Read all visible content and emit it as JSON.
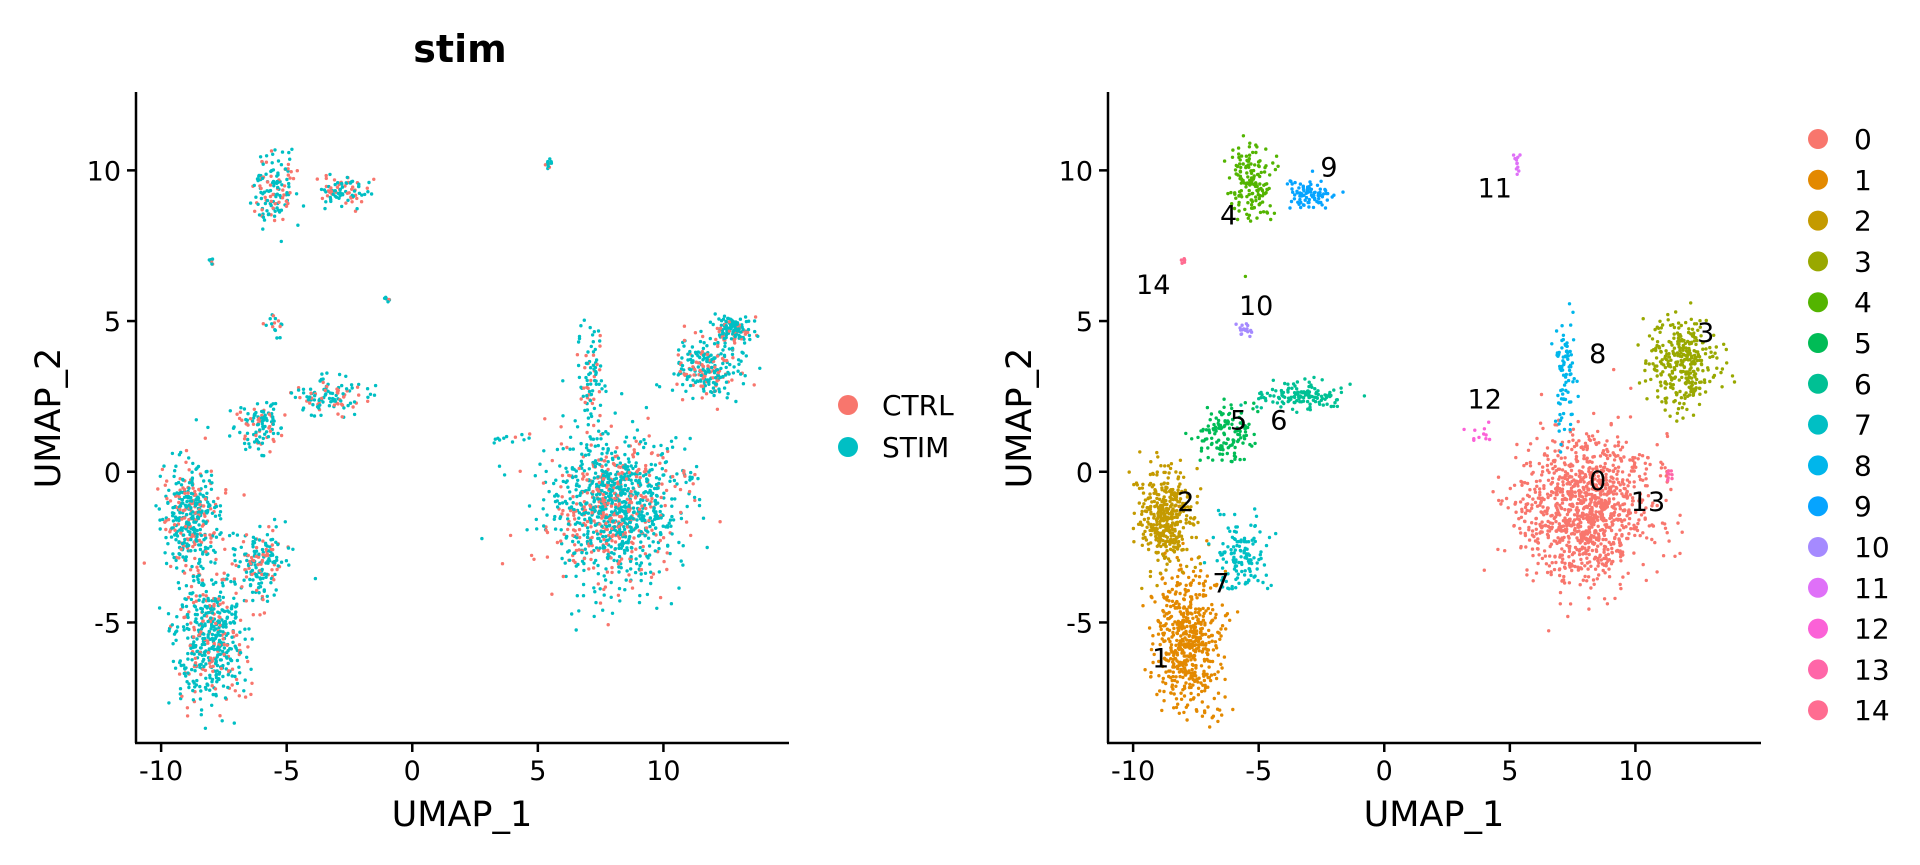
{
  "chart_data": [
    {
      "type": "scatter",
      "title": "stim",
      "xlabel": "UMAP_1",
      "ylabel": "UMAP_2",
      "xlim": [
        -11,
        15
      ],
      "ylim": [
        -9,
        12.6
      ],
      "x_ticks": [
        -10,
        -5,
        0,
        5,
        10
      ],
      "y_ticks": [
        -5,
        0,
        5,
        10
      ],
      "x_tick_labels": [
        "-10",
        "-5",
        "0",
        "5",
        "10"
      ],
      "y_tick_labels": [
        "-5",
        "0",
        "5",
        "10"
      ],
      "grid": false,
      "legend_position": "right",
      "series": [
        {
          "name": "CTRL",
          "color": "#F8766D"
        },
        {
          "name": "STIM",
          "color": "#00BFC4"
        }
      ],
      "regions": [
        {
          "cx": 8.0,
          "cy": -1.2,
          "rx": 2.6,
          "ry": 2.4,
          "weight": 1.0
        },
        {
          "cx": 11.8,
          "cy": 3.4,
          "rx": 1.3,
          "ry": 1.0,
          "weight": 0.22
        },
        {
          "cx": 12.8,
          "cy": 4.7,
          "rx": 0.7,
          "ry": 0.5,
          "weight": 0.12
        },
        {
          "cx": 7.1,
          "cy": 3.2,
          "rx": 0.5,
          "ry": 1.9,
          "weight": 0.08
        },
        {
          "cx": 5.4,
          "cy": 10.2,
          "rx": 0.15,
          "ry": 0.25,
          "weight": 0.01
        },
        {
          "cx": 4.0,
          "cy": 1.1,
          "rx": 0.7,
          "ry": 0.3,
          "weight": 0.01
        },
        {
          "cx": 11.0,
          "cy": -0.2,
          "rx": 0.4,
          "ry": 0.2,
          "weight": 0.01
        },
        {
          "cx": -8.8,
          "cy": -1.5,
          "rx": 1.1,
          "ry": 1.8,
          "weight": 0.35
        },
        {
          "cx": -8.0,
          "cy": -5.5,
          "rx": 1.4,
          "ry": 2.2,
          "weight": 0.45
        },
        {
          "cx": -6.0,
          "cy": -3.0,
          "rx": 1.0,
          "ry": 1.2,
          "weight": 0.15
        },
        {
          "cx": -6.2,
          "cy": 1.5,
          "rx": 1.0,
          "ry": 0.8,
          "weight": 0.1
        },
        {
          "cx": -3.2,
          "cy": 2.5,
          "rx": 1.6,
          "ry": 0.6,
          "weight": 0.1
        },
        {
          "cx": -5.5,
          "cy": 9.4,
          "rx": 0.8,
          "ry": 1.4,
          "weight": 0.12
        },
        {
          "cx": -2.8,
          "cy": 9.3,
          "rx": 1.0,
          "ry": 0.6,
          "weight": 0.08
        },
        {
          "cx": -5.5,
          "cy": 4.8,
          "rx": 0.4,
          "ry": 0.4,
          "weight": 0.015
        },
        {
          "cx": -8.0,
          "cy": 7.0,
          "rx": 0.1,
          "ry": 0.1,
          "weight": 0.004
        },
        {
          "cx": -1.0,
          "cy": 5.7,
          "rx": 0.1,
          "ry": 0.1,
          "weight": 0.002
        }
      ]
    },
    {
      "type": "scatter",
      "title": "",
      "xlabel": "UMAP_1",
      "ylabel": "UMAP_2",
      "xlim": [
        -11,
        15
      ],
      "ylim": [
        -9,
        12.6
      ],
      "x_ticks": [
        -10,
        -5,
        0,
        5,
        10
      ],
      "y_ticks": [
        -5,
        0,
        5,
        10
      ],
      "x_tick_labels": [
        "-10",
        "-5",
        "0",
        "5",
        "10"
      ],
      "y_tick_labels": [
        "-5",
        "0",
        "5",
        "10"
      ],
      "grid": false,
      "legend_position": "right",
      "series": [
        {
          "name": "0",
          "color": "#F8766D"
        },
        {
          "name": "1",
          "color": "#E38900"
        },
        {
          "name": "2",
          "color": "#C49A00"
        },
        {
          "name": "3",
          "color": "#99A800"
        },
        {
          "name": "4",
          "color": "#53B400"
        },
        {
          "name": "5",
          "color": "#00BC56"
        },
        {
          "name": "6",
          "color": "#00C094"
        },
        {
          "name": "7",
          "color": "#00BFC4"
        },
        {
          "name": "8",
          "color": "#00B6EB"
        },
        {
          "name": "9",
          "color": "#06A4FF"
        },
        {
          "name": "10",
          "color": "#A58AFF"
        },
        {
          "name": "11",
          "color": "#DF70F8"
        },
        {
          "name": "12",
          "color": "#FB61D7"
        },
        {
          "name": "13",
          "color": "#FF66A8"
        },
        {
          "name": "14",
          "color": "#FF6C91"
        }
      ],
      "clusters": [
        {
          "label": "0",
          "cx": 8.0,
          "cy": -1.2,
          "rx": 2.6,
          "ry": 2.4,
          "color": "#F8766D",
          "weight": 1.0,
          "label_x": 8.5,
          "label_y": -0.3
        },
        {
          "label": "1",
          "cx": -7.8,
          "cy": -5.5,
          "rx": 1.3,
          "ry": 2.3,
          "color": "#E38900",
          "weight": 0.5,
          "label_x": -8.9,
          "label_y": -6.2
        },
        {
          "label": "2",
          "cx": -8.7,
          "cy": -1.6,
          "rx": 1.0,
          "ry": 1.6,
          "color": "#C49A00",
          "weight": 0.35,
          "label_x": -7.9,
          "label_y": -1.0
        },
        {
          "label": "3",
          "cx": 11.9,
          "cy": 3.6,
          "rx": 1.4,
          "ry": 1.5,
          "color": "#99A800",
          "weight": 0.3,
          "label_x": 12.8,
          "label_y": 4.6
        },
        {
          "label": "4",
          "cx": -5.3,
          "cy": 9.6,
          "rx": 0.8,
          "ry": 1.3,
          "color": "#53B400",
          "weight": 0.15,
          "label_x": -6.2,
          "label_y": 8.5
        },
        {
          "label": "5",
          "cx": -6.3,
          "cy": 1.3,
          "rx": 1.1,
          "ry": 0.9,
          "color": "#00BC56",
          "weight": 0.12,
          "label_x": -5.8,
          "label_y": 1.7
        },
        {
          "label": "6",
          "cx": -3.3,
          "cy": 2.5,
          "rx": 1.6,
          "ry": 0.5,
          "color": "#00C094",
          "weight": 0.12,
          "label_x": -4.2,
          "label_y": 1.7
        },
        {
          "label": "7",
          "cx": -5.7,
          "cy": -2.8,
          "rx": 1.1,
          "ry": 1.1,
          "color": "#00BFC4",
          "weight": 0.12,
          "label_x": -6.5,
          "label_y": -3.7
        },
        {
          "label": "8",
          "cx": 7.2,
          "cy": 3.2,
          "rx": 0.4,
          "ry": 2.0,
          "color": "#00B6EB",
          "weight": 0.08,
          "label_x": 8.5,
          "label_y": 3.9
        },
        {
          "label": "9",
          "cx": -2.9,
          "cy": 9.2,
          "rx": 1.0,
          "ry": 0.6,
          "color": "#06A4FF",
          "weight": 0.08,
          "label_x": -2.2,
          "label_y": 10.1
        },
        {
          "label": "10",
          "cx": -5.6,
          "cy": 4.7,
          "rx": 0.35,
          "ry": 0.3,
          "color": "#A58AFF",
          "weight": 0.015,
          "label_x": -5.1,
          "label_y": 5.5
        },
        {
          "label": "11",
          "cx": 5.3,
          "cy": 10.2,
          "rx": 0.15,
          "ry": 0.25,
          "color": "#DF70F8",
          "weight": 0.01,
          "label_x": 4.4,
          "label_y": 9.4
        },
        {
          "label": "12",
          "cx": 3.8,
          "cy": 1.2,
          "rx": 0.7,
          "ry": 0.3,
          "color": "#FB61D7",
          "weight": 0.01,
          "label_x": 4.0,
          "label_y": 2.4
        },
        {
          "label": "13",
          "cx": 11.3,
          "cy": -0.1,
          "rx": 0.3,
          "ry": 0.15,
          "color": "#FF66A8",
          "weight": 0.008,
          "label_x": 10.5,
          "label_y": -1.0
        },
        {
          "label": "14",
          "cx": -8.0,
          "cy": 7.0,
          "rx": 0.1,
          "ry": 0.1,
          "color": "#FF6C91",
          "weight": 0.003,
          "label_x": -9.2,
          "label_y": 6.2
        }
      ]
    }
  ]
}
